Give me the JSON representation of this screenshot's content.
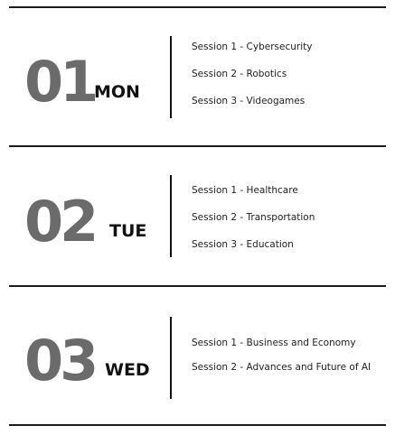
{
  "days": [
    {
      "number": "01",
      "weekday": "MON",
      "sessions": [
        "Session 1 - Cybersecurity",
        "Session 2 - Robotics",
        "Session 3 - Videogames"
      ]
    },
    {
      "number": "02",
      "weekday": "TUE",
      "sessions": [
        "Session 1 - Healthcare",
        "Session 2 - Transportation",
        "Session 3 - Education"
      ]
    },
    {
      "number": "03",
      "weekday": "WED",
      "sessions": [
        "Session 1 - Business and Economy",
        "Session 2 - Advances and Future of AI"
      ]
    }
  ]
}
